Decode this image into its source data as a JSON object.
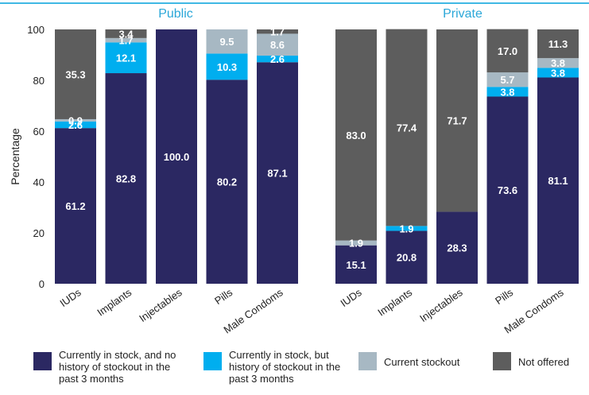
{
  "colors": {
    "in_stock_no_history": "#2b2862",
    "in_stock_history": "#00aeef",
    "current_stockout": "#a7b8c3",
    "not_offered": "#5d5d5d",
    "header_line": "#00a0dc",
    "title": "#2aa7d8"
  },
  "chart_data": {
    "type": "bar",
    "stacked": true,
    "ylabel": "Percentage",
    "ylim": [
      0,
      100
    ],
    "yticks": [
      "0",
      "20",
      "40",
      "60",
      "80",
      "100"
    ],
    "categories": [
      "IUDs",
      "Implants",
      "Injectables",
      "Pills",
      "Male Condoms"
    ],
    "legend": {
      "placement": "bottom",
      "entries": [
        {
          "key": "in_stock_no_history",
          "label": "Currently in stock, and no history of stockout in the past 3 months"
        },
        {
          "key": "in_stock_history",
          "label": "Currently in stock, but history of stockout in the past 3 months"
        },
        {
          "key": "current_stockout",
          "label": "Current stockout"
        },
        {
          "key": "not_offered",
          "label": "Not offered"
        }
      ]
    },
    "panels": [
      {
        "title": "Public",
        "series": [
          {
            "key": "in_stock_no_history",
            "values": [
              61.2,
              82.8,
              100.0,
              80.2,
              87.1
            ],
            "labels": [
              "61.2",
              "82.8",
              "100.0",
              "80.2",
              "87.1"
            ]
          },
          {
            "key": "in_stock_history",
            "values": [
              2.6,
              12.1,
              0,
              10.3,
              2.6
            ],
            "labels": [
              "2.6",
              "12.1",
              "",
              "10.3",
              "2.6"
            ]
          },
          {
            "key": "current_stockout",
            "values": [
              0.9,
              1.7,
              0,
              9.5,
              8.6
            ],
            "labels": [
              "0.9",
              "1.7",
              "",
              "9.5",
              "8.6"
            ]
          },
          {
            "key": "not_offered",
            "values": [
              35.3,
              3.4,
              0,
              0,
              1.7
            ],
            "labels": [
              "35.3",
              "3.4",
              "",
              "",
              "1.7"
            ]
          }
        ]
      },
      {
        "title": "Private",
        "series": [
          {
            "key": "in_stock_no_history",
            "values": [
              15.1,
              20.8,
              28.3,
              73.6,
              81.1
            ],
            "labels": [
              "15.1",
              "20.8",
              "28.3",
              "73.6",
              "81.1"
            ]
          },
          {
            "key": "in_stock_history",
            "values": [
              0,
              1.9,
              0,
              3.8,
              3.8
            ],
            "labels": [
              "",
              "1.9",
              "",
              "3.8",
              "3.8"
            ]
          },
          {
            "key": "current_stockout",
            "values": [
              1.9,
              0,
              0,
              5.7,
              3.8
            ],
            "labels": [
              "1.9",
              "",
              "",
              "5.7",
              "3.8"
            ]
          },
          {
            "key": "not_offered",
            "values": [
              83.0,
              77.4,
              71.7,
              17.0,
              11.3
            ],
            "labels": [
              "83.0",
              "77.4",
              "71.7",
              "17.0",
              "11.3"
            ]
          }
        ]
      }
    ]
  }
}
